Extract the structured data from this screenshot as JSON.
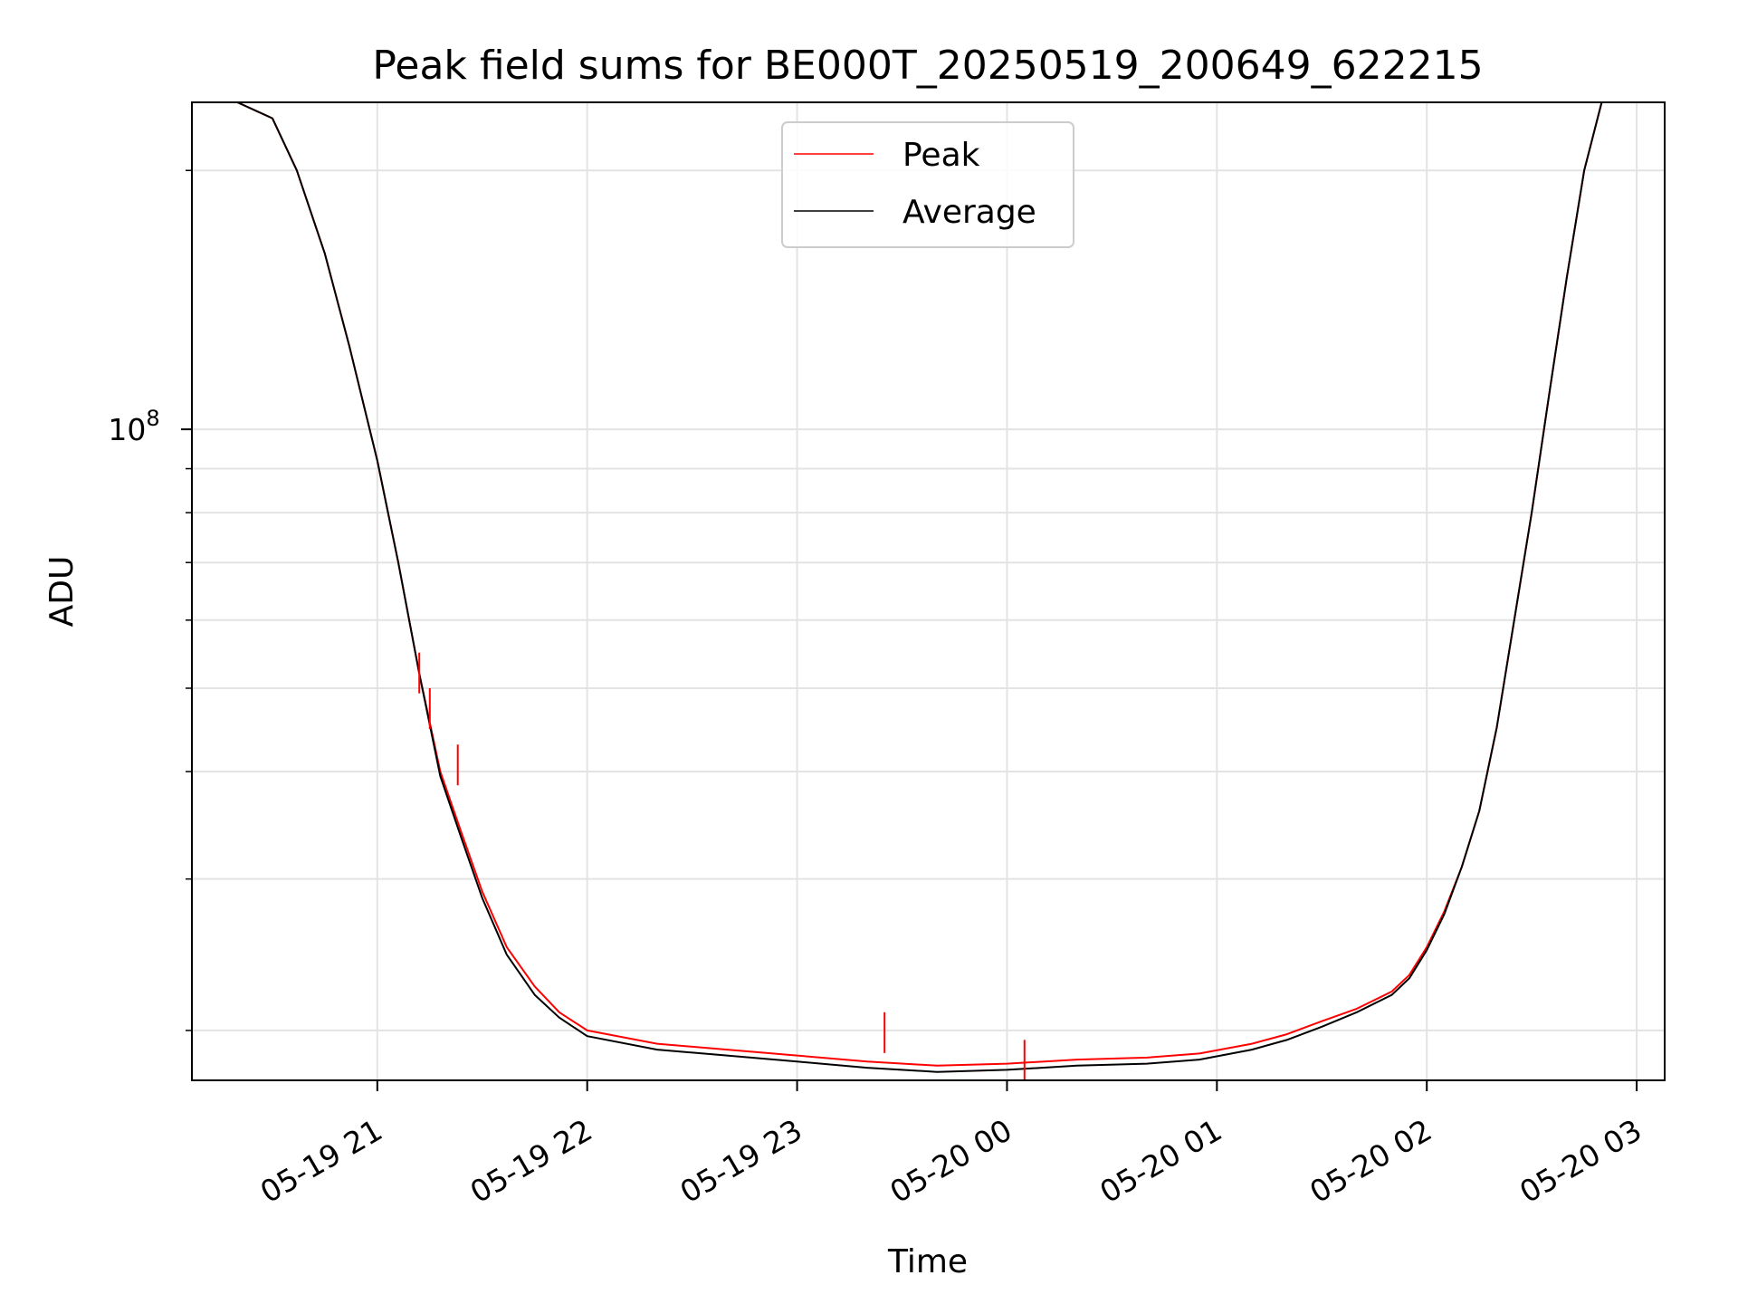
{
  "chart_data": {
    "type": "line",
    "title": "Peak field sums for BE000T_20250519_200649_622215",
    "xlabel": "Time",
    "ylabel": "ADU",
    "y_scale": "log",
    "grid": true,
    "legend_placement": "upper-center",
    "x_ticks": [
      "05-19 21",
      "05-19 22",
      "05-19 23",
      "05-20 00",
      "05-20 01",
      "05-20 02",
      "05-20 03"
    ],
    "y_ticks": [
      {
        "value": 100000000,
        "base": "10",
        "exponent": "8"
      }
    ],
    "xlim": [
      "2025-05-19 20:07",
      "2025-05-20 03:08"
    ],
    "ylim": [
      17500000,
      240000000
    ],
    "colors": {
      "Peak": "#ff0000",
      "Average": "#000000"
    },
    "series": [
      {
        "name": "Peak",
        "x": [
          "2025-05-19 20:07",
          "2025-05-19 20:20",
          "2025-05-19 20:30",
          "2025-05-19 20:37",
          "2025-05-19 20:45",
          "2025-05-19 20:52",
          "2025-05-19 21:00",
          "2025-05-19 21:06",
          "2025-05-19 21:12",
          "2025-05-19 21:18",
          "2025-05-19 21:24",
          "2025-05-19 21:30",
          "2025-05-19 21:37",
          "2025-05-19 21:45",
          "2025-05-19 21:52",
          "2025-05-19 22:00",
          "2025-05-19 22:20",
          "2025-05-19 22:40",
          "2025-05-19 23:00",
          "2025-05-19 23:20",
          "2025-05-19 23:40",
          "2025-05-20 00:00",
          "2025-05-20 00:20",
          "2025-05-20 00:40",
          "2025-05-20 00:55",
          "2025-05-20 01:10",
          "2025-05-20 01:20",
          "2025-05-20 01:30",
          "2025-05-20 01:40",
          "2025-05-20 01:50",
          "2025-05-20 01:55",
          "2025-05-20 02:00",
          "2025-05-20 02:05",
          "2025-05-20 02:10",
          "2025-05-20 02:15",
          "2025-05-20 02:20",
          "2025-05-20 02:25",
          "2025-05-20 02:30",
          "2025-05-20 02:35",
          "2025-05-20 02:40",
          "2025-05-20 02:45",
          "2025-05-20 02:50",
          "2025-05-20 03:08"
        ],
        "y": [
          240000000,
          240000000,
          230000000,
          200000000,
          160000000,
          125000000,
          92000000,
          70000000,
          52000000,
          40000000,
          34000000,
          29000000,
          25000000,
          22500000,
          21000000,
          20000000,
          19300000,
          19000000,
          18700000,
          18400000,
          18200000,
          18300000,
          18500000,
          18600000,
          18800000,
          19300000,
          19800000,
          20500000,
          21200000,
          22200000,
          23200000,
          25000000,
          27500000,
          31000000,
          36000000,
          45000000,
          60000000,
          80000000,
          110000000,
          150000000,
          200000000,
          240000000,
          240000000
        ]
      },
      {
        "name": "Average",
        "x": [
          "2025-05-19 20:07",
          "2025-05-19 20:20",
          "2025-05-19 20:30",
          "2025-05-19 20:37",
          "2025-05-19 20:45",
          "2025-05-19 20:52",
          "2025-05-19 21:00",
          "2025-05-19 21:06",
          "2025-05-19 21:12",
          "2025-05-19 21:18",
          "2025-05-19 21:24",
          "2025-05-19 21:30",
          "2025-05-19 21:37",
          "2025-05-19 21:45",
          "2025-05-19 21:52",
          "2025-05-19 22:00",
          "2025-05-19 22:20",
          "2025-05-19 22:40",
          "2025-05-19 23:00",
          "2025-05-19 23:20",
          "2025-05-19 23:40",
          "2025-05-20 00:00",
          "2025-05-20 00:20",
          "2025-05-20 00:40",
          "2025-05-20 00:55",
          "2025-05-20 01:10",
          "2025-05-20 01:20",
          "2025-05-20 01:30",
          "2025-05-20 01:40",
          "2025-05-20 01:50",
          "2025-05-20 01:55",
          "2025-05-20 02:00",
          "2025-05-20 02:05",
          "2025-05-20 02:10",
          "2025-05-20 02:15",
          "2025-05-20 02:20",
          "2025-05-20 02:25",
          "2025-05-20 02:30",
          "2025-05-20 02:35",
          "2025-05-20 02:40",
          "2025-05-20 02:45",
          "2025-05-20 02:50",
          "2025-05-20 03:08"
        ],
        "y": [
          240000000,
          240000000,
          230000000,
          200000000,
          160000000,
          125000000,
          92000000,
          70000000,
          52000000,
          39500000,
          33500000,
          28500000,
          24500000,
          22000000,
          20700000,
          19700000,
          19000000,
          18700000,
          18400000,
          18100000,
          17900000,
          18000000,
          18200000,
          18300000,
          18500000,
          19000000,
          19500000,
          20200000,
          21000000,
          22000000,
          23000000,
          24800000,
          27300000,
          31000000,
          36000000,
          45000000,
          60000000,
          80000000,
          110000000,
          150000000,
          200000000,
          240000000,
          240000000
        ]
      }
    ],
    "annotations": [
      {
        "series": "Peak",
        "x": "2025-05-19 21:12",
        "y": 55000000
      },
      {
        "series": "Peak",
        "x": "2025-05-19 21:15",
        "y": 50000000
      },
      {
        "series": "Peak",
        "x": "2025-05-19 21:23",
        "y": 43000000
      },
      {
        "series": "Peak",
        "x": "2025-05-19 23:25",
        "y": 21000000
      },
      {
        "series": "Peak",
        "x": "2025-05-20 00:05",
        "y": 19500000
      }
    ]
  }
}
